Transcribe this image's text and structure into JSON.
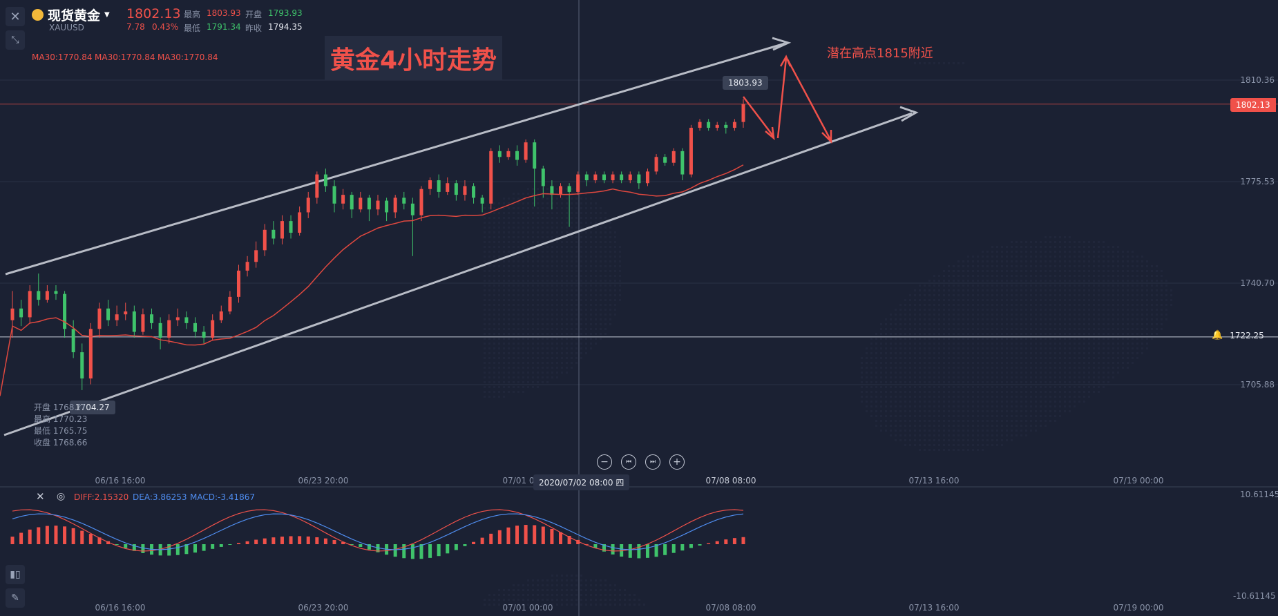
{
  "header": {
    "symbol_name": "现货黄金",
    "symbol_code": "XAUUSD",
    "last_price": "1802.13",
    "change": "7.78",
    "change_pct": "0.43%",
    "high_label": "最高",
    "high_value": "1803.93",
    "open_label": "开盘",
    "open_value": "1793.93",
    "low_label": "最低",
    "low_value": "1791.34",
    "prev_close_label": "昨收",
    "prev_close_value": "1794.35",
    "ma_labels": [
      "MA30:1770.84",
      "MA30:1770.84",
      "MA30:1770.84"
    ]
  },
  "annotations": {
    "title": "黄金4小时走势",
    "target_note": "潜在高点1815附近",
    "peak_tag": "1803.93",
    "low_tag": "1704.27",
    "last_price_tag": "1802.13",
    "crosshair_price_tag": "1722.25",
    "crosshair_time_tag": "2020/07/02 08:00 四",
    "lower_time_tag": "07/08 08:00"
  },
  "ohlc_box": {
    "open": "开盘 1768.??",
    "high": "最高 1770.23",
    "low": "最低 1765.75",
    "close": "收盘 1768.66"
  },
  "macd": {
    "diff": "DIFF:2.15320",
    "dea": "DEA:3.86253",
    "macd": "MACD:-3.41867",
    "axis_top": "10.61145",
    "axis_bottom": "-10.61145"
  },
  "colors": {
    "background": "#1b2133",
    "up": "#f0514a",
    "down": "#3fc36b",
    "ma": "#e0483f",
    "channel": "#b8bcc6",
    "dea_line": "#4f8df0",
    "diff_line": "#f0514a"
  },
  "chart_data": {
    "type": "candlestick",
    "title": "黄金4小时走势",
    "y_ticks": [
      "1810.36",
      "1775.53",
      "1740.70",
      "1705.88"
    ],
    "x_ticks": [
      "06/16 16:00",
      "06/23 20:00",
      "07/01 00:00",
      "07/08 08:00",
      "07/13 16:00",
      "07/19 00:00"
    ],
    "ylim": [
      1683,
      1835
    ],
    "candles": [
      [
        1728,
        1732,
        1722,
        1738
      ],
      [
        1732,
        1729,
        1726,
        1735
      ],
      [
        1729,
        1738,
        1727,
        1740
      ],
      [
        1738,
        1735,
        1733,
        1744
      ],
      [
        1735,
        1738,
        1734,
        1740
      ],
      [
        1738,
        1737,
        1735,
        1740
      ],
      [
        1737,
        1725,
        1722,
        1738
      ],
      [
        1725,
        1717,
        1715,
        1728
      ],
      [
        1717,
        1708,
        1704,
        1720
      ],
      [
        1708,
        1725,
        1706,
        1727
      ],
      [
        1725,
        1732,
        1722,
        1734
      ],
      [
        1732,
        1728,
        1726,
        1735
      ],
      [
        1728,
        1730,
        1726,
        1733
      ],
      [
        1730,
        1731,
        1728,
        1734
      ],
      [
        1731,
        1724,
        1722,
        1733
      ],
      [
        1724,
        1730,
        1723,
        1732
      ],
      [
        1730,
        1727,
        1725,
        1732
      ],
      [
        1727,
        1722,
        1718,
        1729
      ],
      [
        1722,
        1728,
        1720,
        1730
      ],
      [
        1728,
        1729,
        1726,
        1732
      ],
      [
        1729,
        1727,
        1725,
        1731
      ],
      [
        1727,
        1724,
        1722,
        1729
      ],
      [
        1724,
        1722,
        1720,
        1726
      ],
      [
        1722,
        1728,
        1721,
        1730
      ],
      [
        1728,
        1731,
        1727,
        1733
      ],
      [
        1731,
        1736,
        1730,
        1738
      ],
      [
        1736,
        1745,
        1734,
        1747
      ],
      [
        1745,
        1748,
        1743,
        1750
      ],
      [
        1748,
        1752,
        1746,
        1755
      ],
      [
        1752,
        1759,
        1750,
        1761
      ],
      [
        1759,
        1756,
        1754,
        1762
      ],
      [
        1756,
        1762,
        1754,
        1764
      ],
      [
        1762,
        1758,
        1756,
        1764
      ],
      [
        1758,
        1765,
        1757,
        1767
      ],
      [
        1765,
        1770,
        1763,
        1772
      ],
      [
        1770,
        1778,
        1768,
        1779
      ],
      [
        1778,
        1774,
        1772,
        1780
      ],
      [
        1774,
        1768,
        1765,
        1776
      ],
      [
        1768,
        1771,
        1766,
        1773
      ],
      [
        1771,
        1766,
        1763,
        1772
      ],
      [
        1766,
        1770,
        1765,
        1772
      ],
      [
        1770,
        1766,
        1762,
        1771
      ],
      [
        1766,
        1769,
        1764,
        1771
      ],
      [
        1769,
        1765,
        1762,
        1770
      ],
      [
        1765,
        1770,
        1763,
        1771
      ],
      [
        1770,
        1768,
        1766,
        1772
      ],
      [
        1768,
        1764,
        1750,
        1770
      ],
      [
        1764,
        1773,
        1762,
        1774
      ],
      [
        1773,
        1776,
        1771,
        1777
      ],
      [
        1776,
        1772,
        1770,
        1778
      ],
      [
        1772,
        1775,
        1771,
        1777
      ],
      [
        1775,
        1771,
        1769,
        1776
      ],
      [
        1771,
        1774,
        1769,
        1776
      ],
      [
        1774,
        1770,
        1768,
        1775
      ],
      [
        1770,
        1768,
        1765,
        1771
      ],
      [
        1768,
        1786,
        1766,
        1787
      ],
      [
        1786,
        1784,
        1782,
        1788
      ],
      [
        1784,
        1786,
        1783,
        1787
      ],
      [
        1786,
        1783,
        1781,
        1788
      ],
      [
        1783,
        1789,
        1782,
        1790
      ],
      [
        1789,
        1780,
        1767,
        1790
      ],
      [
        1780,
        1774,
        1770,
        1781
      ],
      [
        1774,
        1771,
        1766,
        1776
      ],
      [
        1771,
        1774,
        1770,
        1775
      ],
      [
        1774,
        1772,
        1760,
        1775
      ],
      [
        1772,
        1778,
        1771,
        1779
      ],
      [
        1778,
        1776,
        1774,
        1779
      ],
      [
        1776,
        1778,
        1775,
        1779
      ],
      [
        1778,
        1776,
        1775,
        1779
      ],
      [
        1776,
        1778,
        1775,
        1779
      ],
      [
        1778,
        1776,
        1775,
        1779
      ],
      [
        1776,
        1778,
        1775,
        1779
      ],
      [
        1778,
        1775,
        1773,
        1779
      ],
      [
        1775,
        1779,
        1774,
        1780
      ],
      [
        1779,
        1784,
        1778,
        1785
      ],
      [
        1784,
        1782,
        1781,
        1785
      ],
      [
        1782,
        1786,
        1781,
        1787
      ],
      [
        1786,
        1778,
        1776,
        1787
      ],
      [
        1778,
        1794,
        1777,
        1795
      ],
      [
        1794,
        1796,
        1793,
        1797
      ],
      [
        1796,
        1794,
        1793,
        1797
      ],
      [
        1794,
        1795,
        1793,
        1796
      ],
      [
        1795,
        1794,
        1792,
        1796
      ],
      [
        1794,
        1796,
        1793,
        1797
      ],
      [
        1796,
        1802.13,
        1794,
        1803.93
      ]
    ],
    "target_high": 1815
  }
}
